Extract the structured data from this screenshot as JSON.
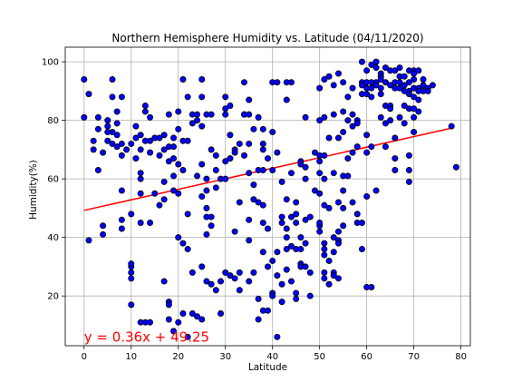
{
  "chart_data": {
    "type": "scatter",
    "title": "Northern Hemisphere Humidity vs. Latitude (04/11/2020)",
    "xlabel": "Latitude",
    "ylabel": "Humidity(%)",
    "xlim": [
      -4,
      82
    ],
    "ylim": [
      3,
      105
    ],
    "xticks": [
      0,
      10,
      20,
      30,
      40,
      50,
      60,
      70,
      80
    ],
    "yticks": [
      20,
      40,
      60,
      80,
      100
    ],
    "grid": true,
    "point_color": "#0000ff",
    "point_edge_color": "#000000",
    "regression": {
      "slope": 0.36,
      "intercept": 49.25,
      "x_range": [
        0,
        78
      ],
      "color": "#ff0000",
      "equation_text": "y = 0.36x + 49.25",
      "equation_position": [
        0,
        6
      ]
    },
    "points": [
      [
        0,
        94
      ],
      [
        0,
        81
      ],
      [
        1,
        89
      ],
      [
        1,
        39
      ],
      [
        2,
        73
      ],
      [
        2,
        70
      ],
      [
        3,
        81
      ],
      [
        3,
        77
      ],
      [
        3,
        63
      ],
      [
        4,
        44
      ],
      [
        4,
        69
      ],
      [
        4,
        41
      ],
      [
        5,
        78
      ],
      [
        5,
        76
      ],
      [
        5,
        73
      ],
      [
        5,
        80
      ],
      [
        6,
        94
      ],
      [
        6,
        88
      ],
      [
        6,
        76
      ],
      [
        6,
        72
      ],
      [
        7,
        79
      ],
      [
        7,
        83
      ],
      [
        7,
        75
      ],
      [
        7,
        71
      ],
      [
        8,
        88
      ],
      [
        8,
        72
      ],
      [
        8,
        68
      ],
      [
        8,
        56
      ],
      [
        8,
        46
      ],
      [
        8,
        43
      ],
      [
        9,
        70
      ],
      [
        10,
        30
      ],
      [
        10,
        28
      ],
      [
        10,
        26
      ],
      [
        10,
        17
      ],
      [
        10,
        31
      ],
      [
        10,
        48
      ],
      [
        10,
        72
      ],
      [
        11,
        78
      ],
      [
        11,
        74
      ],
      [
        11,
        67
      ],
      [
        12,
        75
      ],
      [
        12,
        70
      ],
      [
        12,
        62
      ],
      [
        12,
        60
      ],
      [
        12,
        55
      ],
      [
        12,
        45
      ],
      [
        12,
        11
      ],
      [
        13,
        85
      ],
      [
        13,
        83
      ],
      [
        13,
        73
      ],
      [
        13,
        11
      ],
      [
        14,
        81
      ],
      [
        14,
        73
      ],
      [
        14,
        69
      ],
      [
        14,
        45
      ],
      [
        14,
        11
      ],
      [
        15,
        74
      ],
      [
        15,
        55
      ],
      [
        16,
        74
      ],
      [
        16,
        68
      ],
      [
        16,
        51
      ],
      [
        17,
        59
      ],
      [
        17,
        53
      ],
      [
        17,
        75
      ],
      [
        17,
        70
      ],
      [
        17,
        25
      ],
      [
        18,
        82
      ],
      [
        18,
        71
      ],
      [
        18,
        66
      ],
      [
        18,
        18
      ],
      [
        18,
        12
      ],
      [
        18,
        17
      ],
      [
        19,
        74
      ],
      [
        19,
        71
      ],
      [
        19,
        67
      ],
      [
        19,
        61
      ],
      [
        19,
        56
      ],
      [
        19,
        8
      ],
      [
        20,
        77
      ],
      [
        20,
        83
      ],
      [
        20,
        65
      ],
      [
        20,
        55
      ],
      [
        20,
        40
      ],
      [
        20,
        11
      ],
      [
        21,
        94
      ],
      [
        21,
        73
      ],
      [
        21,
        63
      ],
      [
        21,
        38
      ],
      [
        21,
        14
      ],
      [
        22,
        88
      ],
      [
        22,
        73
      ],
      [
        22,
        48
      ],
      [
        22,
        36
      ],
      [
        22,
        6
      ],
      [
        23,
        82
      ],
      [
        23,
        79
      ],
      [
        23,
        14
      ],
      [
        23,
        28
      ],
      [
        24,
        82
      ],
      [
        24,
        80
      ],
      [
        24,
        61
      ],
      [
        24,
        13
      ],
      [
        25,
        94
      ],
      [
        25,
        88
      ],
      [
        25,
        78
      ],
      [
        25,
        65
      ],
      [
        25,
        54
      ],
      [
        25,
        30
      ],
      [
        25,
        12
      ],
      [
        26,
        82
      ],
      [
        26,
        60
      ],
      [
        26,
        56
      ],
      [
        26,
        50
      ],
      [
        26,
        47
      ],
      [
        26,
        41
      ],
      [
        26,
        25
      ],
      [
        27,
        82
      ],
      [
        27,
        70
      ],
      [
        27,
        47
      ],
      [
        27,
        44
      ],
      [
        27,
        24
      ],
      [
        28,
        68
      ],
      [
        28,
        63
      ],
      [
        28,
        57
      ],
      [
        28,
        22
      ],
      [
        29,
        60
      ],
      [
        29,
        25
      ],
      [
        29,
        14
      ],
      [
        30,
        88
      ],
      [
        30,
        84
      ],
      [
        30,
        82
      ],
      [
        30,
        66
      ],
      [
        30,
        60
      ],
      [
        30,
        28
      ],
      [
        31,
        85
      ],
      [
        31,
        75
      ],
      [
        31,
        67
      ],
      [
        31,
        27
      ],
      [
        32,
        70
      ],
      [
        32,
        69
      ],
      [
        32,
        42
      ],
      [
        32,
        26
      ],
      [
        33,
        72
      ],
      [
        33,
        52
      ],
      [
        33,
        28
      ],
      [
        33,
        22
      ],
      [
        34,
        93
      ],
      [
        34,
        82
      ],
      [
        34,
        68
      ],
      [
        34,
        82
      ],
      [
        35,
        82
      ],
      [
        35,
        72
      ],
      [
        35,
        87
      ],
      [
        35,
        62
      ],
      [
        35,
        46
      ],
      [
        35,
        39
      ],
      [
        35,
        25
      ],
      [
        36,
        77
      ],
      [
        36,
        58
      ],
      [
        36,
        53
      ],
      [
        36,
        28
      ],
      [
        37,
        81
      ],
      [
        37,
        63
      ],
      [
        37,
        52
      ],
      [
        37,
        12
      ],
      [
        37,
        19
      ],
      [
        38,
        77
      ],
      [
        38,
        72
      ],
      [
        38,
        70
      ],
      [
        38,
        63
      ],
      [
        38,
        51
      ],
      [
        38,
        45
      ],
      [
        38,
        35
      ],
      [
        38,
        15
      ],
      [
        39,
        67
      ],
      [
        39,
        43
      ],
      [
        39,
        30
      ],
      [
        39,
        15
      ],
      [
        40,
        93
      ],
      [
        40,
        76
      ],
      [
        40,
        63
      ],
      [
        40,
        32
      ],
      [
        40,
        21
      ],
      [
        40,
        20
      ],
      [
        41,
        93
      ],
      [
        41,
        69
      ],
      [
        41,
        35
      ],
      [
        41,
        27
      ],
      [
        41,
        6
      ],
      [
        42,
        47
      ],
      [
        42,
        59
      ],
      [
        42,
        45
      ],
      [
        42,
        24
      ],
      [
        42,
        18
      ],
      [
        43,
        93
      ],
      [
        43,
        87
      ],
      [
        43,
        53
      ],
      [
        43,
        43
      ],
      [
        43,
        40
      ],
      [
        43,
        36
      ],
      [
        43,
        29
      ],
      [
        44,
        93
      ],
      [
        44,
        62
      ],
      [
        44,
        47
      ],
      [
        44,
        37
      ],
      [
        44,
        25
      ],
      [
        45,
        52
      ],
      [
        45,
        48
      ],
      [
        45,
        45
      ],
      [
        45,
        36
      ],
      [
        45,
        21
      ],
      [
        45,
        19
      ],
      [
        46,
        66
      ],
      [
        46,
        65
      ],
      [
        46,
        40
      ],
      [
        46,
        36
      ],
      [
        46,
        31
      ],
      [
        46,
        30
      ],
      [
        47,
        81
      ],
      [
        47,
        64
      ],
      [
        47,
        60
      ],
      [
        47,
        46
      ],
      [
        47,
        38
      ],
      [
        47,
        30
      ],
      [
        48,
        47
      ],
      [
        48,
        28
      ],
      [
        48,
        20
      ],
      [
        49,
        69
      ],
      [
        49,
        56
      ],
      [
        50,
        44
      ],
      [
        50,
        91
      ],
      [
        50,
        80
      ],
      [
        50,
        68
      ],
      [
        50,
        66
      ],
      [
        50,
        62
      ],
      [
        50,
        55
      ],
      [
        50,
        45
      ],
      [
        50,
        42
      ],
      [
        51,
        94
      ],
      [
        51,
        81
      ],
      [
        51,
        68
      ],
      [
        51,
        60
      ],
      [
        51,
        51
      ],
      [
        51,
        38
      ],
      [
        51,
        36
      ],
      [
        51,
        34
      ],
      [
        51,
        28
      ],
      [
        51,
        26
      ],
      [
        52,
        95
      ],
      [
        52,
        74
      ],
      [
        52,
        50
      ],
      [
        52,
        32
      ],
      [
        52,
        24
      ],
      [
        53,
        92
      ],
      [
        53,
        82
      ],
      [
        53,
        62
      ],
      [
        53,
        40
      ],
      [
        53,
        35
      ],
      [
        53,
        28
      ],
      [
        53,
        27
      ],
      [
        54,
        96
      ],
      [
        54,
        74
      ],
      [
        54,
        52
      ],
      [
        54,
        39
      ],
      [
        54,
        38
      ],
      [
        54,
        26
      ],
      [
        54,
        42
      ],
      [
        55,
        93
      ],
      [
        55,
        83
      ],
      [
        55,
        76
      ],
      [
        55,
        61
      ],
      [
        55,
        56
      ],
      [
        55,
        50
      ],
      [
        55,
        44
      ],
      [
        56,
        88
      ],
      [
        56,
        80
      ],
      [
        56,
        67
      ],
      [
        56,
        61
      ],
      [
        57,
        91
      ],
      [
        57,
        82
      ],
      [
        57,
        78
      ],
      [
        57,
        69
      ],
      [
        57,
        52
      ],
      [
        58,
        80
      ],
      [
        58,
        79
      ],
      [
        58,
        71
      ],
      [
        58,
        48
      ],
      [
        58,
        45
      ],
      [
        59,
        100
      ],
      [
        59,
        93
      ],
      [
        59,
        92
      ],
      [
        59,
        89
      ],
      [
        59,
        45
      ],
      [
        59,
        36
      ],
      [
        60,
        97
      ],
      [
        60,
        93
      ],
      [
        60,
        91
      ],
      [
        60,
        89
      ],
      [
        60,
        75
      ],
      [
        60,
        69
      ],
      [
        60,
        54
      ],
      [
        60,
        23
      ],
      [
        61,
        93
      ],
      [
        61,
        91
      ],
      [
        61,
        88
      ],
      [
        61,
        23
      ],
      [
        61,
        71
      ],
      [
        61,
        99
      ],
      [
        62,
        93
      ],
      [
        62,
        92
      ],
      [
        62,
        56
      ],
      [
        62,
        100
      ],
      [
        62,
        98
      ],
      [
        63,
        96
      ],
      [
        63,
        95
      ],
      [
        63,
        94
      ],
      [
        63,
        91
      ],
      [
        63,
        89
      ],
      [
        63,
        81
      ],
      [
        64,
        98
      ],
      [
        64,
        93
      ],
      [
        64,
        85
      ],
      [
        64,
        79
      ],
      [
        64,
        71
      ],
      [
        65,
        97
      ],
      [
        65,
        92
      ],
      [
        65,
        85
      ],
      [
        65,
        84
      ],
      [
        65,
        80
      ],
      [
        66,
        97
      ],
      [
        66,
        93
      ],
      [
        66,
        91
      ],
      [
        66,
        74
      ],
      [
        66,
        67
      ],
      [
        66,
        63
      ],
      [
        67,
        98
      ],
      [
        67,
        95
      ],
      [
        67,
        93
      ],
      [
        67,
        91
      ],
      [
        67,
        81
      ],
      [
        68,
        95
      ],
      [
        68,
        92
      ],
      [
        68,
        90
      ],
      [
        68,
        85
      ],
      [
        68,
        79
      ],
      [
        69,
        97
      ],
      [
        69,
        93
      ],
      [
        69,
        90
      ],
      [
        69,
        89
      ],
      [
        69,
        84
      ],
      [
        69,
        68
      ],
      [
        69,
        63
      ],
      [
        69,
        59
      ],
      [
        70,
        97
      ],
      [
        70,
        96
      ],
      [
        70,
        94
      ],
      [
        70,
        91
      ],
      [
        70,
        88
      ],
      [
        70,
        84
      ],
      [
        70,
        81
      ],
      [
        70,
        76
      ],
      [
        71,
        97
      ],
      [
        71,
        91
      ],
      [
        71,
        90
      ],
      [
        71,
        87
      ],
      [
        71,
        83
      ],
      [
        72,
        94
      ],
      [
        72,
        92
      ],
      [
        72,
        90
      ],
      [
        73,
        91
      ],
      [
        73,
        90
      ],
      [
        74,
        92
      ],
      [
        78,
        78
      ],
      [
        79,
        64
      ]
    ]
  }
}
